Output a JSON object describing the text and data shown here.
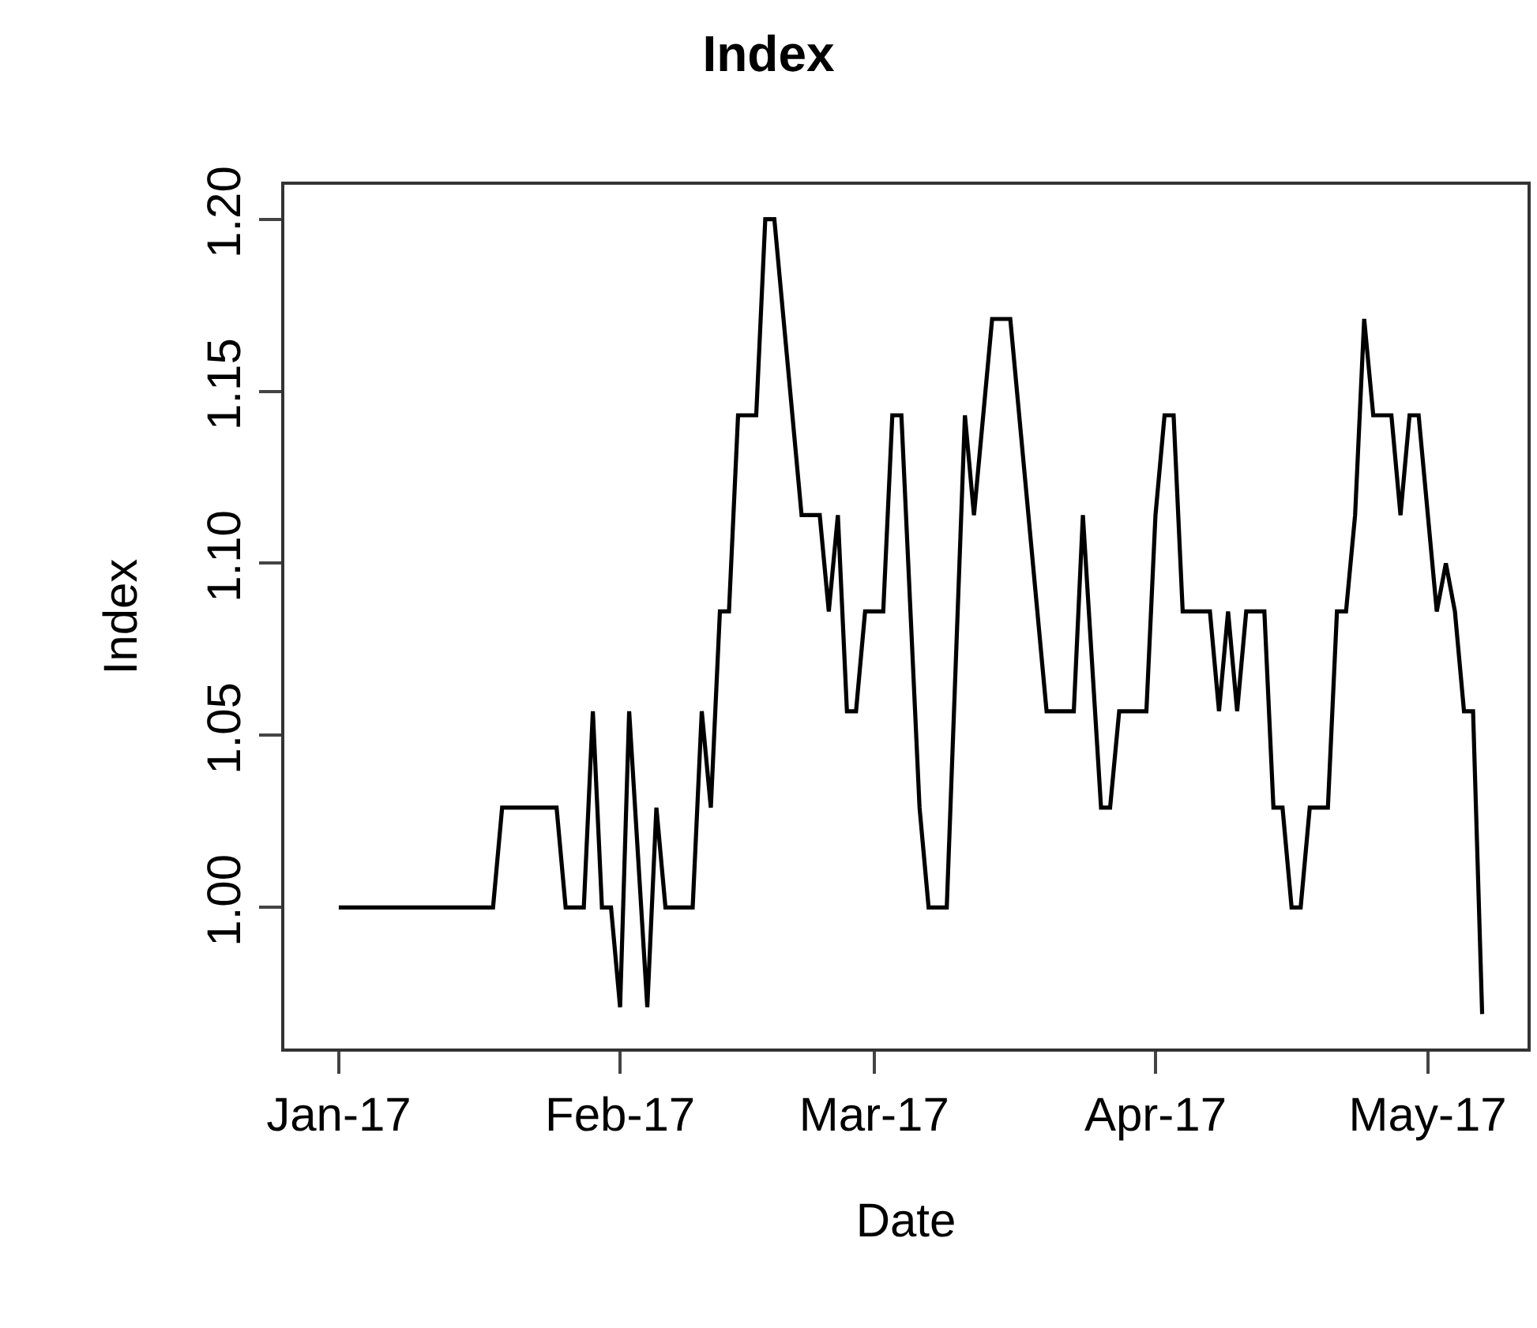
{
  "chart_data": {
    "type": "line",
    "title": "Index",
    "xlabel": "Date",
    "ylabel": "Index",
    "x": [
      "2017-01-01",
      "2017-01-18",
      "2017-01-19",
      "2017-01-25",
      "2017-01-26",
      "2017-01-28",
      "2017-01-29",
      "2017-01-30",
      "2017-01-31",
      "2017-02-01",
      "2017-02-02",
      "2017-02-04",
      "2017-02-05",
      "2017-02-06",
      "2017-02-09",
      "2017-02-10",
      "2017-02-11",
      "2017-02-12",
      "2017-02-13",
      "2017-02-14",
      "2017-02-16",
      "2017-02-17",
      "2017-02-18",
      "2017-02-21",
      "2017-02-23",
      "2017-02-24",
      "2017-02-25",
      "2017-02-26",
      "2017-02-27",
      "2017-02-28",
      "2017-03-02",
      "2017-03-03",
      "2017-03-04",
      "2017-03-06",
      "2017-03-07",
      "2017-03-09",
      "2017-03-11",
      "2017-03-12",
      "2017-03-14",
      "2017-03-16",
      "2017-03-20",
      "2017-03-23",
      "2017-03-24",
      "2017-03-26",
      "2017-03-27",
      "2017-03-28",
      "2017-03-31",
      "2017-04-01",
      "2017-04-02",
      "2017-04-03",
      "2017-04-04",
      "2017-04-07",
      "2017-04-08",
      "2017-04-09",
      "2017-04-10",
      "2017-04-11",
      "2017-04-13",
      "2017-04-14",
      "2017-04-15",
      "2017-04-16",
      "2017-04-17",
      "2017-04-18",
      "2017-04-20",
      "2017-04-21",
      "2017-04-22",
      "2017-04-23",
      "2017-04-24",
      "2017-04-25",
      "2017-04-27",
      "2017-04-28",
      "2017-04-29",
      "2017-04-30",
      "2017-05-02",
      "2017-05-03",
      "2017-05-04",
      "2017-05-05",
      "2017-05-06",
      "2017-05-07"
    ],
    "series": [
      {
        "color": "#000000",
        "values": [
          1.0,
          1.0,
          1.029,
          1.029,
          1.0,
          1.0,
          1.057,
          1.0,
          1.0,
          0.971,
          1.057,
          0.971,
          1.029,
          1.0,
          1.0,
          1.057,
          1.029,
          1.086,
          1.086,
          1.143,
          1.143,
          1.2,
          1.2,
          1.114,
          1.114,
          1.086,
          1.114,
          1.057,
          1.057,
          1.086,
          1.086,
          1.143,
          1.143,
          1.029,
          1.0,
          1.0,
          1.143,
          1.114,
          1.171,
          1.171,
          1.057,
          1.057,
          1.114,
          1.029,
          1.029,
          1.057,
          1.057,
          1.114,
          1.143,
          1.143,
          1.086,
          1.086,
          1.057,
          1.086,
          1.057,
          1.086,
          1.086,
          1.029,
          1.029,
          1.0,
          1.0,
          1.029,
          1.029,
          1.086,
          1.086,
          1.114,
          1.171,
          1.143,
          1.143,
          1.114,
          1.143,
          1.143,
          1.086,
          1.1,
          1.086,
          1.057,
          1.057,
          0.969
        ]
      }
    ],
    "xlim": [
      "2016-12-26",
      "2017-05-12"
    ],
    "xticks": [
      {
        "value": "2017-01-01",
        "label": "Jan-17"
      },
      {
        "value": "2017-02-01",
        "label": "Feb-17"
      },
      {
        "value": "2017-03-01",
        "label": "Mar-17"
      },
      {
        "value": "2017-04-01",
        "label": "Apr-17"
      },
      {
        "value": "2017-05-01",
        "label": "May-17"
      }
    ],
    "ylim": [
      0.959,
      1.21
    ],
    "yticks": [
      {
        "value": 1.0,
        "label": "1.00"
      },
      {
        "value": 1.05,
        "label": "1.05"
      },
      {
        "value": 1.1,
        "label": "1.10"
      },
      {
        "value": 1.15,
        "label": "1.15"
      },
      {
        "value": 1.2,
        "label": "1.20"
      }
    ],
    "marker": "none",
    "line_style": "solid"
  }
}
